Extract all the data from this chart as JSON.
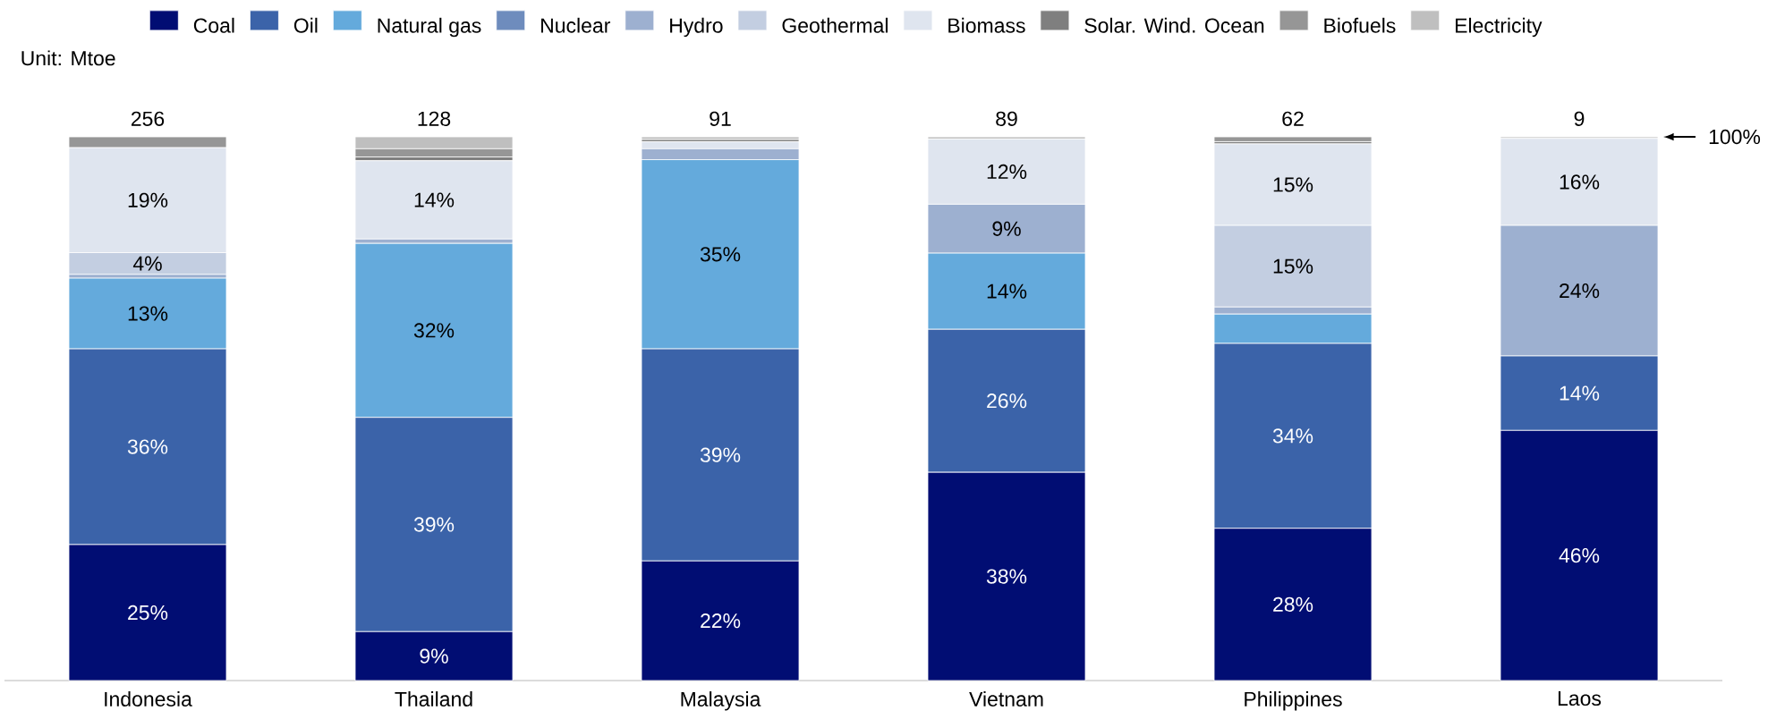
{
  "chart_data": {
    "type": "bar",
    "stacked": true,
    "categories": [
      "Indonesia",
      "Thailand",
      "Malaysia",
      "Vietnam",
      "Philippines",
      "Laos"
    ],
    "series": [
      {
        "name": "Coal",
        "color": "#010d73",
        "values": [
          25,
          9,
          22,
          38.3,
          28,
          46
        ],
        "value_labels": [
          "25%",
          "9%",
          "22%",
          "38%",
          "28%",
          "46%"
        ]
      },
      {
        "name": "Oil",
        "color": "#3b63a9",
        "values": [
          36,
          39.4,
          39,
          26.3,
          34,
          13.7
        ],
        "value_labels": [
          "36%",
          "39%",
          "39%",
          "26%",
          "34%",
          "14%"
        ]
      },
      {
        "name": "Natural gas",
        "color": "#64aadc",
        "values": [
          13,
          32,
          34.8,
          14,
          5.4,
          0
        ],
        "value_labels": [
          "13%",
          "32%",
          "35%",
          "14%",
          null,
          null
        ]
      },
      {
        "name": "Nuclear",
        "color": "#6e8cbd",
        "values": [
          0,
          0,
          0,
          0,
          0,
          0
        ]
      },
      {
        "name": "Hydro",
        "color": "#9db0d0",
        "values": [
          0.7,
          0.8,
          2,
          9,
          1.3,
          24
        ],
        "value_labels": [
          null,
          null,
          null,
          "9%",
          null,
          "24%"
        ]
      },
      {
        "name": "Geothermal",
        "color": "#c3cee1",
        "values": [
          4,
          0,
          0,
          0,
          15,
          0
        ],
        "value_labels": [
          "4%",
          null,
          null,
          null,
          "15%",
          null
        ]
      },
      {
        "name": "Biomass",
        "color": "#dfe5ef",
        "values": [
          19.3,
          14.4,
          1.3,
          12,
          15,
          16
        ],
        "value_labels": [
          "19%",
          "14%",
          null,
          "12%",
          "15%",
          "16%"
        ]
      },
      {
        "name": "Solar. Wind. Ocean",
        "color": "#7f7f7f",
        "values": [
          0,
          0.7,
          0.4,
          0,
          0.4,
          0
        ]
      },
      {
        "name": "Biofuels",
        "color": "#969696",
        "values": [
          2,
          1.5,
          0,
          0,
          0.9,
          0
        ]
      },
      {
        "name": "Electricity",
        "color": "#bfbfbf",
        "values": [
          0,
          2.2,
          0.5,
          0.4,
          0,
          0.3
        ]
      }
    ],
    "ylim": [
      0,
      100
    ],
    "tick_labels": "x",
    "legend": "top",
    "annotations": [
      "Unit: Mtoe",
      "100%",
      {
        "text": "256",
        "x": "Indonesia",
        "y": 100
      },
      {
        "text": "128",
        "x": "Thailand",
        "y": 100
      },
      {
        "text": "91",
        "x": "Malaysia",
        "y": 100
      },
      {
        "text": "89",
        "x": "Vietnam",
        "y": 100
      },
      {
        "text": "62",
        "x": "Philippines",
        "y": 100
      },
      {
        "text": "9",
        "x": "Laos",
        "y": 100
      }
    ]
  }
}
